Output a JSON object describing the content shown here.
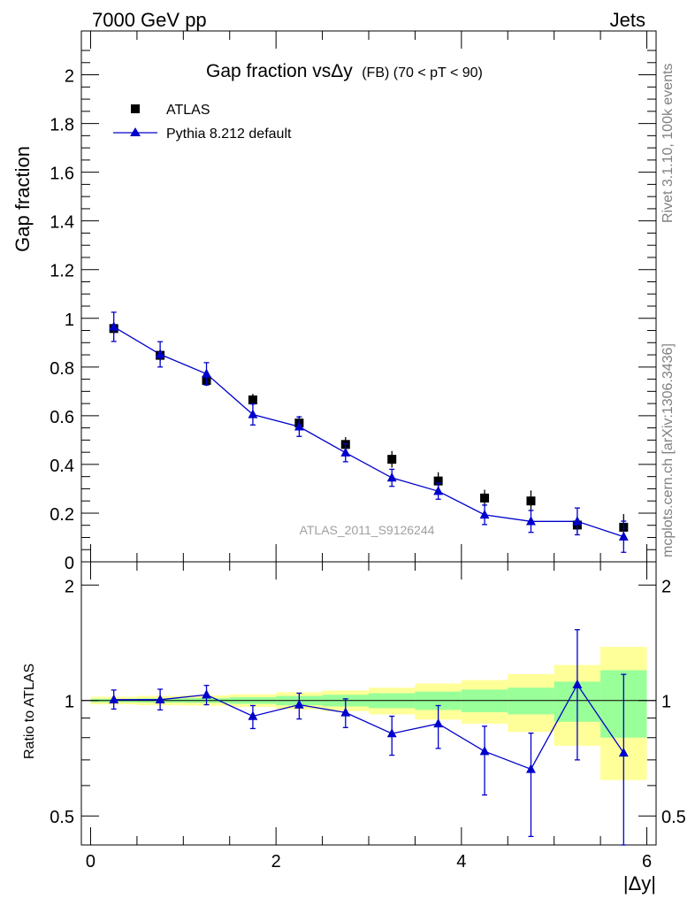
{
  "header": {
    "left": "7000 GeV pp",
    "right": "Jets"
  },
  "side_labels": {
    "rivet": "Rivet 3.1.10,  100k events",
    "mcplots": "mcplots.cern.ch [arXiv:1306.3436]"
  },
  "main_plot": {
    "title_main": "Gap fraction vsΔy",
    "title_sub": "(FB) (70 < pT <  90)",
    "ylabel": "Gap fraction",
    "analysis_tag": "ATLAS_2011_S9126244",
    "legend": [
      {
        "label": "ATLAS",
        "marker": "square",
        "color": "#000000"
      },
      {
        "label": "Pythia 8.212 default",
        "marker": "triangle",
        "color": "#0000cc"
      }
    ],
    "y_ticks": [
      "0",
      "0.2",
      "0.4",
      "0.6",
      "0.8",
      "1",
      "1.2",
      "1.4",
      "1.6",
      "1.8",
      "2"
    ]
  },
  "ratio_plot": {
    "ylabel": "Ratio to ATLAS",
    "y_ticks": [
      "0.5",
      "1",
      "2"
    ]
  },
  "x_axis": {
    "label": "|Δy|",
    "ticks": [
      "0",
      "2",
      "4",
      "6"
    ]
  },
  "colors": {
    "data": "#000000",
    "mc": "#0000cc",
    "band_inner": "#99ff99",
    "band_outer": "#ffff99"
  },
  "chart_data": [
    {
      "type": "scatter",
      "title": "Gap fraction vsΔy (FB) (70 < pT <  90)",
      "xlabel": "|Δy|",
      "ylabel": "Gap fraction",
      "xlim": [
        -0.1,
        6.1
      ],
      "ylim": [
        0,
        2.18
      ],
      "x": [
        0.25,
        0.75,
        1.25,
        1.75,
        2.25,
        2.75,
        3.25,
        3.75,
        4.25,
        4.75,
        5.25,
        5.75
      ],
      "series": [
        {
          "name": "ATLAS",
          "values": [
            0.958,
            0.848,
            0.745,
            0.665,
            0.57,
            0.482,
            0.421,
            0.332,
            0.262,
            0.25,
            0.151,
            0.142
          ],
          "stat_err": [
            0.012,
            0.012,
            0.01,
            0.01,
            0.01,
            0.01,
            0.01,
            0.01,
            0.01,
            0.01,
            0.01,
            0.01
          ],
          "total_err": [
            0.022,
            0.024,
            0.023,
            0.025,
            0.029,
            0.03,
            0.034,
            0.036,
            0.034,
            0.043,
            0.036,
            0.054
          ]
        },
        {
          "name": "Pythia 8.212 default",
          "values": [
            0.965,
            0.852,
            0.772,
            0.605,
            0.555,
            0.448,
            0.345,
            0.29,
            0.193,
            0.166,
            0.166,
            0.103
          ],
          "errors": [
            0.06,
            0.052,
            0.046,
            0.043,
            0.04,
            0.037,
            0.035,
            0.033,
            0.04,
            0.045,
            0.055,
            0.064
          ]
        }
      ]
    },
    {
      "type": "scatter",
      "title": "",
      "xlabel": "|Δy|",
      "ylabel": "Ratio to ATLAS",
      "log_y": true,
      "ylim": [
        0.42,
        2.3
      ],
      "x": [
        0.25,
        0.75,
        1.25,
        1.75,
        2.25,
        2.75,
        3.25,
        3.75,
        4.25,
        4.75,
        5.25,
        5.75
      ],
      "series": [
        {
          "name": "Pythia 8.212 default",
          "values": [
            1.005,
            1.005,
            1.035,
            0.91,
            0.975,
            0.93,
            0.82,
            0.87,
            0.737,
            0.662,
            1.1,
            0.73
          ],
          "err_low": [
            0.055,
            0.06,
            0.06,
            0.065,
            0.08,
            0.08,
            0.1,
            0.12,
            0.17,
            0.22,
            0.4,
            0.48
          ],
          "err_high": [
            0.06,
            0.065,
            0.06,
            0.06,
            0.07,
            0.08,
            0.09,
            0.1,
            0.12,
            0.16,
            0.43,
            0.44
          ]
        }
      ],
      "bands": {
        "x_edges": [
          0.0,
          0.5,
          1.0,
          1.5,
          2.0,
          2.5,
          3.0,
          3.5,
          4.0,
          4.5,
          5.0,
          5.5,
          6.0
        ],
        "stat_rel": [
          0.012,
          0.014,
          0.014,
          0.015,
          0.018,
          0.021,
          0.024,
          0.03,
          0.038,
          0.04,
          0.066,
          0.07
        ],
        "total_rel": [
          0.023,
          0.028,
          0.031,
          0.038,
          0.051,
          0.062,
          0.08,
          0.108,
          0.13,
          0.172,
          0.238,
          0.38
        ],
        "stat_band_rel": [
          0.01,
          0.012,
          0.014,
          0.02,
          0.028,
          0.035,
          0.045,
          0.055,
          0.068,
          0.08,
          0.12,
          0.2
        ]
      }
    }
  ]
}
